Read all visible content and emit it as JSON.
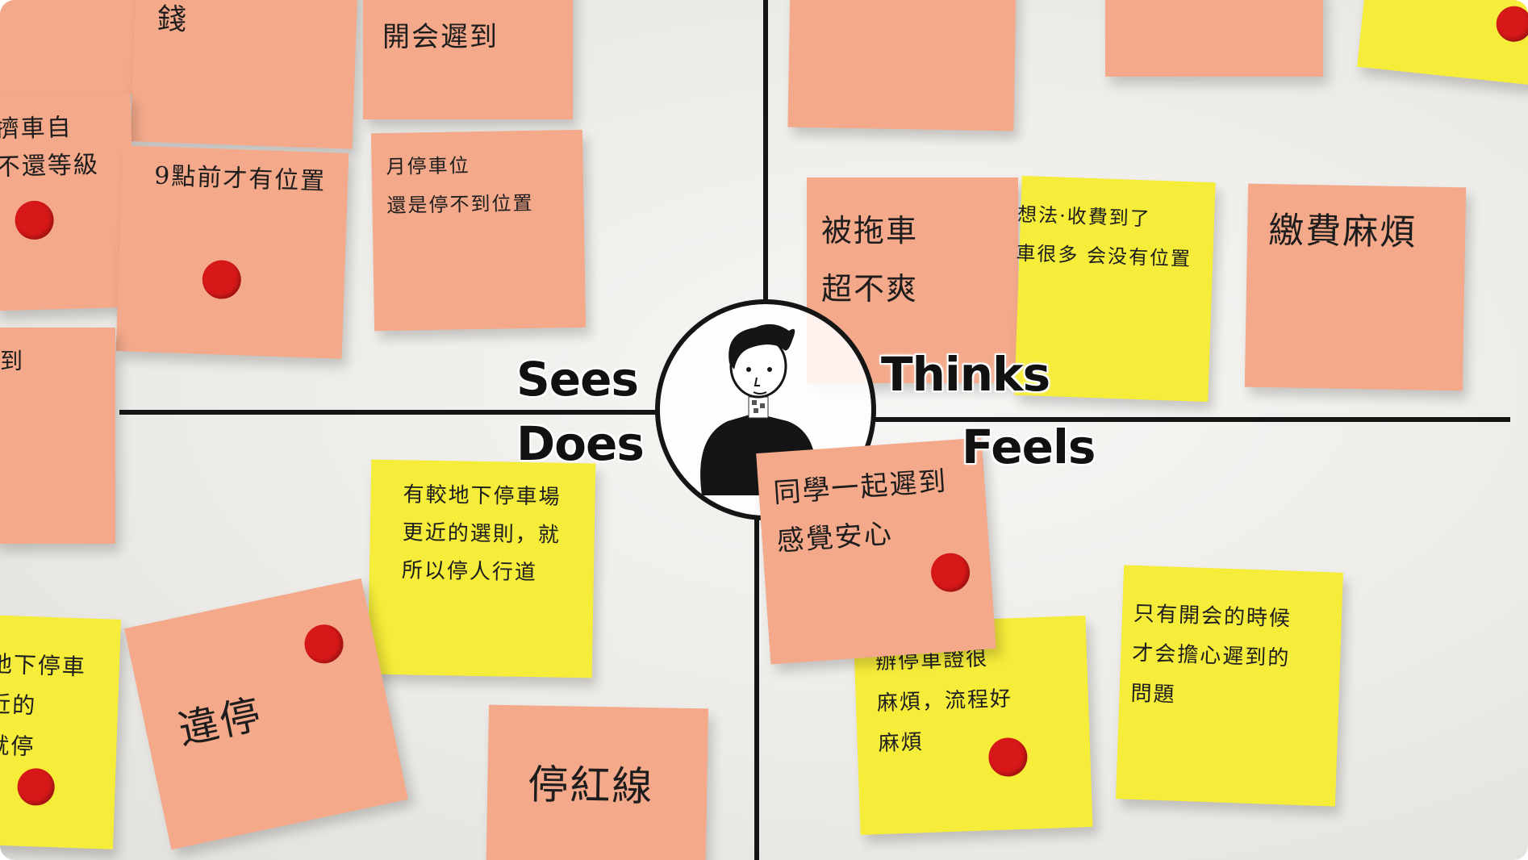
{
  "quadrants": {
    "sees": "Sees",
    "thinks": "Thinks",
    "does": "Does",
    "feels": "Feels"
  },
  "notes": {
    "money": "錢",
    "meeting_late": "開会遲到",
    "left_partial": "擠車自\n不還等級",
    "nine_oclock": "9點前才有位置",
    "monthly_parking": "月停車位\n還是停不到位置",
    "late_partial": "遲到",
    "towed": "被拖車\n超不爽",
    "thinking": "想法·收費到了\n車很多 会没有位置",
    "fee_hassle": "繳費麻煩",
    "underground": "有較地下停車場\n更近的選則，就\n所以停人行道",
    "left_yellow_partial": "地下停車\n近的\n就停",
    "illegal_parking": "違停",
    "parking_ticket": "停紅線",
    "classmates_late": "同學一起遲到\n感覺安心",
    "permit": "辦停車證很\n麻煩，流程好\n麻煩",
    "only_meeting": "只有開会的時候\n才会擔心遲到的\n問題"
  },
  "colors": {
    "pink_note": "#f4a98a",
    "yellow_note": "#f6ec3a",
    "dot": "#d71818"
  }
}
